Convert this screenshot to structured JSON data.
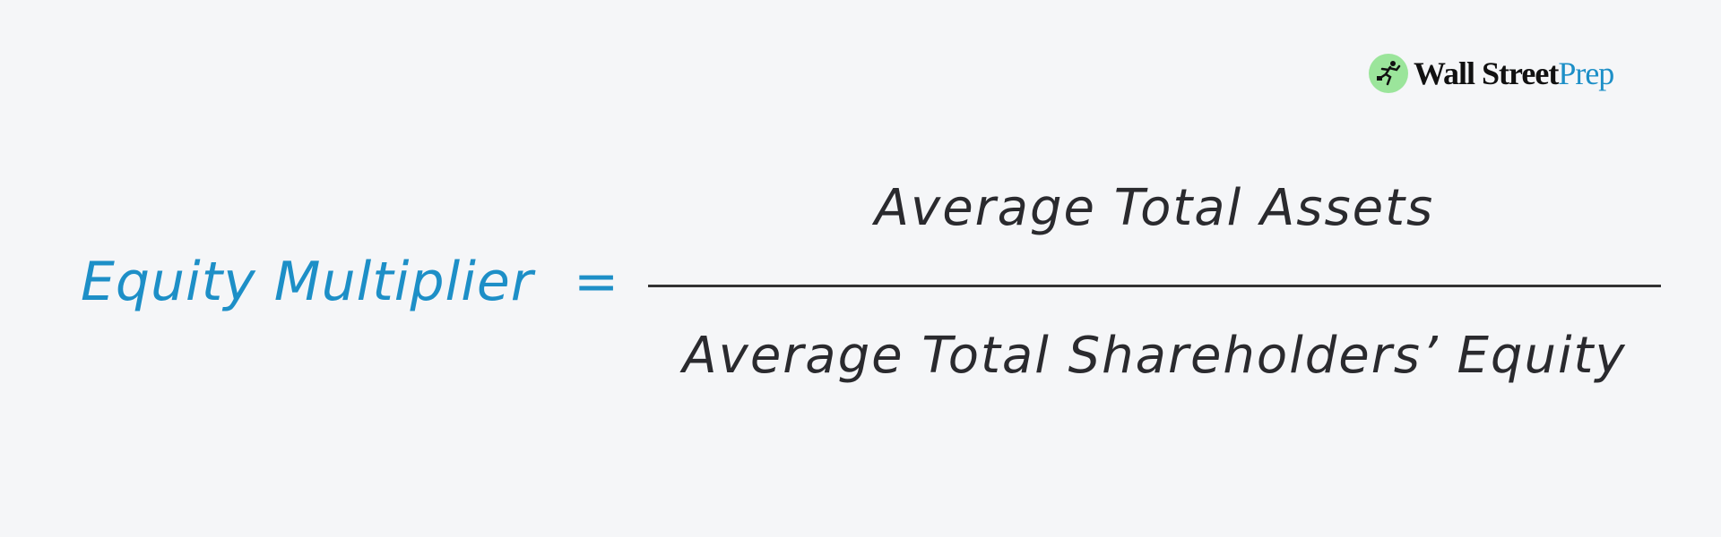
{
  "formula": {
    "label": "Equity Multiplier",
    "equals": "=",
    "numerator": "Average Total Assets",
    "denominator": "Average Total Shareholders’ Equity"
  },
  "logo": {
    "brand_dark": "Wall Street",
    "brand_blue": "Prep",
    "icon": "running-figure-icon"
  },
  "colors": {
    "accent": "#1d8fc7",
    "text": "#2a2a2e",
    "background": "#f5f6f8",
    "logo_mark": "#9be59b"
  }
}
